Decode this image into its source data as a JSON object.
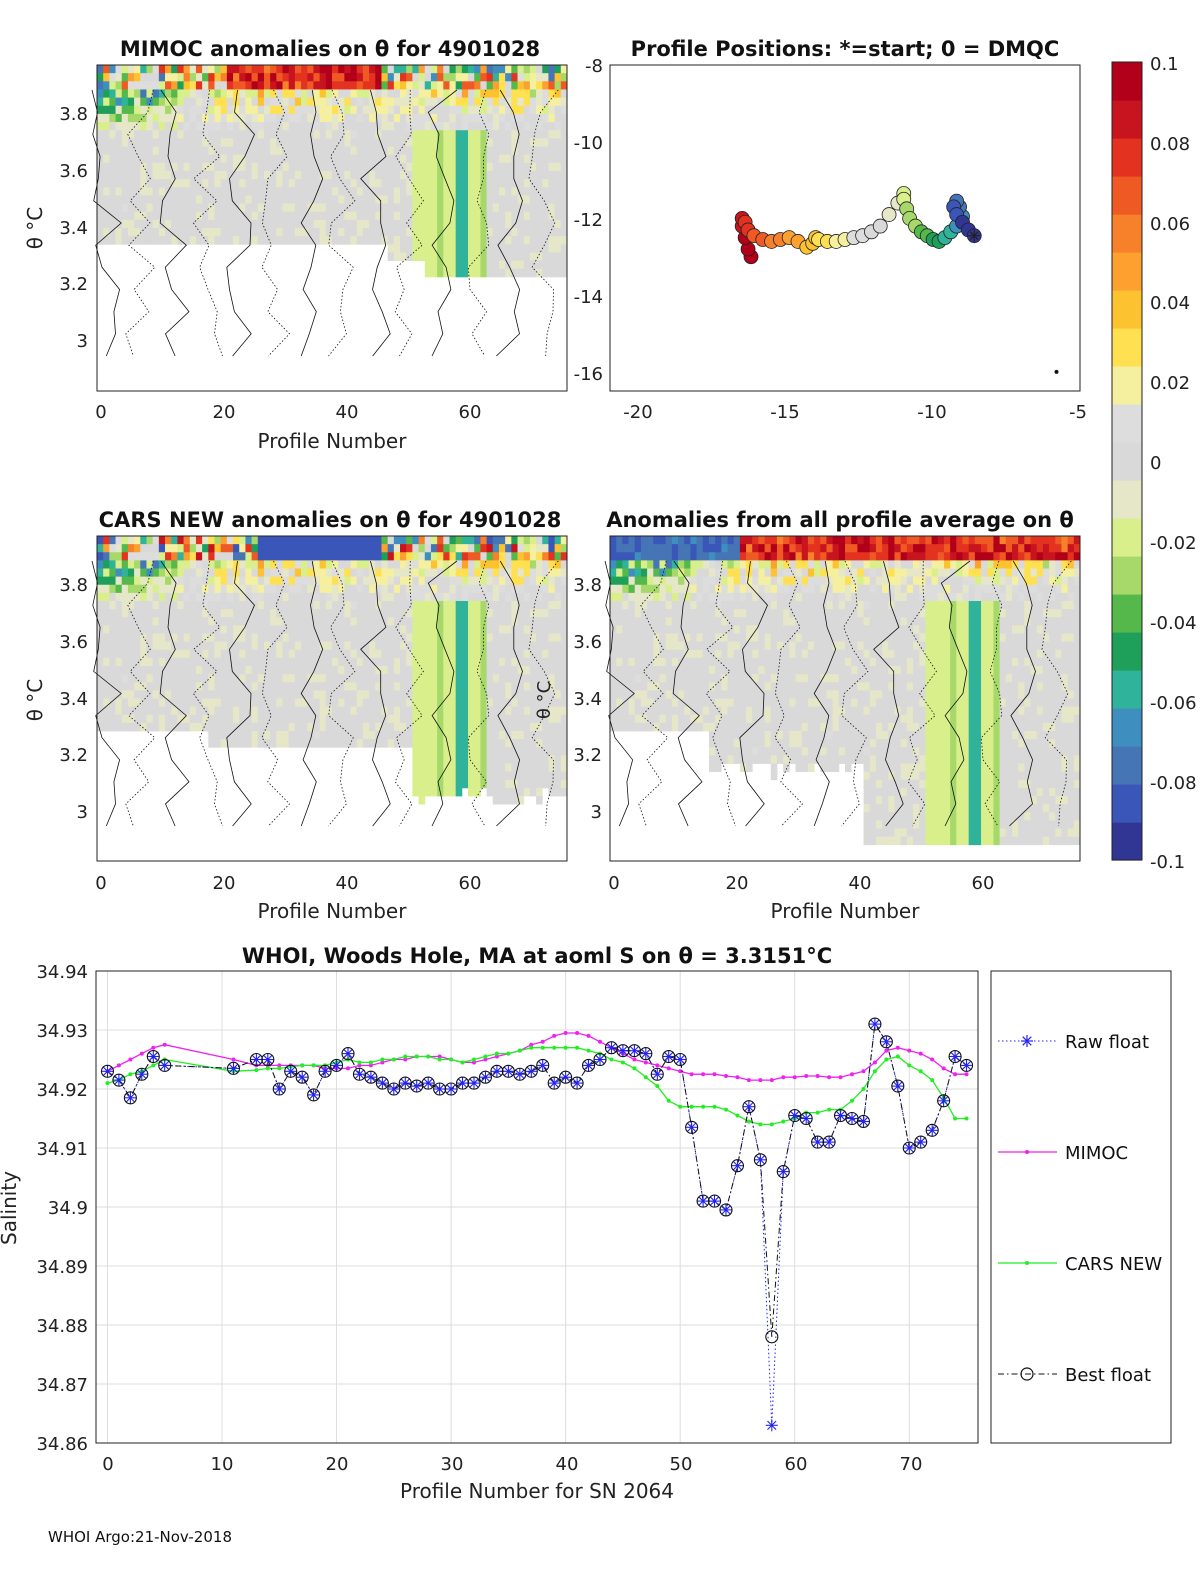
{
  "footer": "WHOI Argo:21-Nov-2018",
  "colorbar": {
    "ticks": [
      "0.1",
      "0.08",
      "0.06",
      "0.04",
      "0.02",
      "0",
      "-0.02",
      "-0.04",
      "-0.06",
      "-0.08",
      "-0.1"
    ],
    "colors": [
      "#313695",
      "#3a56b8",
      "#4575b4",
      "#3e8fc0",
      "#2fb39a",
      "#1fa05a",
      "#55b84a",
      "#a6d96a",
      "#d9ef8b",
      "#e6e6c8",
      "#d9d9d9",
      "#dddddd",
      "#f5f0a0",
      "#fee050",
      "#fdc230",
      "#fca030",
      "#f7802a",
      "#ef5a24",
      "#e33320",
      "#c8141e",
      "#b2001a"
    ]
  },
  "panels": {
    "mimoc": {
      "title": "MIMOC anomalies on θ  for 4901028",
      "xlabel": "Profile Number",
      "ylabel": "θ °C",
      "xticks": [
        "0",
        "20",
        "40",
        "60"
      ],
      "yticks": [
        "3.8",
        "3.6",
        "3.4",
        "3.2",
        "3"
      ]
    },
    "positions": {
      "title": "Profile Positions: *=start; 0 = DMQC",
      "xticks": [
        "-20",
        "-15",
        "-10",
        "-5"
      ],
      "yticks": [
        "-8",
        "-10",
        "-12",
        "-14",
        "-16"
      ]
    },
    "cars": {
      "title": "CARS NEW anomalies on θ for 4901028",
      "xlabel": "Profile Number",
      "ylabel": "θ °C",
      "inner_label": "θ °C",
      "xticks": [
        "0",
        "20",
        "40",
        "60"
      ],
      "yticks": [
        "3.8",
        "3.6",
        "3.4",
        "3.2",
        "3"
      ]
    },
    "allavg": {
      "title": "Anomalies from all profile average on θ",
      "xlabel": "Profile Number",
      "xticks": [
        "0",
        "20",
        "40",
        "60"
      ],
      "yticks": [
        "3.8",
        "3.6",
        "3.4",
        "3.2",
        "3"
      ]
    }
  },
  "chart_data": [
    {
      "type": "heatmap",
      "title": "MIMOC anomalies on θ  for 4901028",
      "xlabel": "Profile Number",
      "ylabel": "θ °C",
      "xlim": [
        -1,
        75
      ],
      "ylim": [
        2.8,
        3.95
      ],
      "color_range": [
        -0.1,
        0.1
      ]
    },
    {
      "type": "scatter",
      "title": "Profile Positions: *=start; 0 = DMQC",
      "xlim": [
        -21,
        -5
      ],
      "ylim": [
        -16.5,
        -8
      ],
      "lon": [
        -8.6,
        -8.8,
        -9.0,
        -9.2,
        -9.3,
        -9.2,
        -9.1,
        -9.0,
        -9.2,
        -9.4,
        -9.6,
        -9.8,
        -10.0,
        -10.2,
        -10.4,
        -10.6,
        -10.8,
        -10.9,
        -11.0,
        -11.0,
        -11.2,
        -11.5,
        -11.8,
        -12.1,
        -12.4,
        -12.7,
        -13.0,
        -13.3,
        -13.6,
        -13.9,
        -14.0,
        -14.1,
        -14.3,
        -14.6,
        -14.9,
        -15.2,
        -15.5,
        -15.8,
        -16.1,
        -16.3,
        -16.4,
        -16.5,
        -16.5,
        -16.4,
        -16.3,
        -16.2
      ],
      "lat": [
        -12.45,
        -12.3,
        -12.1,
        -11.9,
        -11.7,
        -11.55,
        -11.7,
        -11.95,
        -12.2,
        -12.35,
        -12.5,
        -12.6,
        -12.55,
        -12.45,
        -12.35,
        -12.2,
        -12.0,
        -11.75,
        -11.5,
        -11.35,
        -11.6,
        -11.9,
        -12.2,
        -12.35,
        -12.45,
        -12.5,
        -12.55,
        -12.6,
        -12.6,
        -12.55,
        -12.5,
        -12.65,
        -12.75,
        -12.6,
        -12.5,
        -12.55,
        -12.6,
        -12.55,
        -12.45,
        -12.3,
        -12.1,
        -12.0,
        -12.2,
        -12.5,
        -12.8,
        -13.0
      ],
      "dmqc_lon": [
        -5.8
      ],
      "dmqc_lat": [
        -16.0
      ]
    },
    {
      "type": "heatmap",
      "title": "CARS NEW anomalies on θ for 4901028",
      "xlabel": "Profile Number",
      "ylabel": "θ °C",
      "xlim": [
        -1,
        75
      ],
      "ylim": [
        2.8,
        3.95
      ],
      "color_range": [
        -0.1,
        0.1
      ]
    },
    {
      "type": "heatmap",
      "title": "Anomalies from all profile average on θ",
      "xlabel": "Profile Number",
      "xlim": [
        -1,
        75
      ],
      "ylim": [
        2.8,
        3.95
      ],
      "color_range": [
        -0.1,
        0.1
      ]
    },
    {
      "type": "line",
      "title": "WHOI, Woods Hole, MA at aoml S on θ = 3.3151°C",
      "xlabel": "Profile Number for SN 2064",
      "ylabel": "Salinity",
      "xlim": [
        -1,
        76
      ],
      "ylim": [
        34.86,
        34.94
      ],
      "xticks": [
        "0",
        "10",
        "20",
        "30",
        "40",
        "50",
        "60",
        "70"
      ],
      "yticks": [
        "34.94",
        "34.93",
        "34.92",
        "34.91",
        "34.9",
        "34.89",
        "34.88",
        "34.87",
        "34.86"
      ],
      "legend": [
        "Raw float",
        "MIMOC",
        "CARS NEW",
        "Best float"
      ],
      "x": [
        0,
        1,
        2,
        3,
        4,
        5,
        11,
        13,
        14,
        15,
        16,
        17,
        18,
        19,
        20,
        21,
        22,
        23,
        24,
        25,
        26,
        27,
        28,
        29,
        30,
        31,
        32,
        33,
        34,
        35,
        36,
        37,
        38,
        39,
        40,
        41,
        42,
        43,
        44,
        45,
        46,
        47,
        48,
        49,
        50,
        51,
        52,
        53,
        54,
        55,
        56,
        57,
        58,
        59,
        60,
        61,
        62,
        63,
        64,
        65,
        66,
        67,
        68,
        69,
        70,
        71,
        72,
        73,
        74,
        75
      ],
      "series": [
        {
          "name": "Raw float",
          "values": [
            34.923,
            34.9215,
            34.9185,
            34.9225,
            34.9255,
            34.924,
            34.9235,
            34.925,
            34.925,
            34.92,
            34.923,
            34.922,
            34.919,
            34.923,
            34.924,
            34.926,
            34.9225,
            34.922,
            34.921,
            34.92,
            34.921,
            34.9205,
            34.921,
            34.92,
            34.92,
            34.921,
            34.921,
            34.922,
            34.923,
            34.923,
            34.9225,
            34.923,
            34.924,
            34.921,
            34.922,
            34.921,
            34.924,
            34.925,
            34.927,
            34.9265,
            34.9265,
            34.926,
            34.9225,
            34.9255,
            34.925,
            34.9135,
            34.901,
            34.901,
            34.8995,
            34.907,
            34.917,
            34.908,
            34.863,
            34.906,
            34.9155,
            34.915,
            34.911,
            34.911,
            34.9155,
            34.915,
            34.9145,
            34.931,
            34.928,
            34.9205,
            34.91,
            34.911,
            34.913,
            34.918,
            34.9255,
            34.924
          ]
        },
        {
          "name": "MIMOC",
          "values": [
            34.923,
            34.924,
            34.925,
            34.926,
            34.927,
            34.9275,
            34.925,
            34.924,
            34.924,
            34.924,
            34.924,
            34.924,
            34.924,
            34.9235,
            34.9235,
            34.9235,
            34.924,
            34.924,
            34.9245,
            34.925,
            34.925,
            34.9255,
            34.9255,
            34.9255,
            34.925,
            34.9245,
            34.9245,
            34.925,
            34.9255,
            34.926,
            34.9265,
            34.9275,
            34.928,
            34.929,
            34.9295,
            34.9295,
            34.929,
            34.928,
            34.927,
            34.926,
            34.925,
            34.9245,
            34.924,
            34.9235,
            34.923,
            34.9225,
            34.9225,
            34.9225,
            34.9222,
            34.922,
            34.9215,
            34.9215,
            34.9215,
            34.922,
            34.922,
            34.9222,
            34.9222,
            34.922,
            34.922,
            34.9225,
            34.923,
            34.9245,
            34.9265,
            34.927,
            34.9265,
            34.926,
            34.925,
            34.9235,
            34.9225,
            34.9225
          ]
        },
        {
          "name": "CARS NEW",
          "values": [
            34.921,
            34.9215,
            34.9225,
            34.923,
            34.924,
            34.925,
            34.923,
            34.9232,
            34.9235,
            34.9235,
            34.9238,
            34.924,
            34.924,
            34.924,
            34.9245,
            34.925,
            34.9245,
            34.9245,
            34.925,
            34.925,
            34.9255,
            34.9255,
            34.9255,
            34.925,
            34.925,
            34.9245,
            34.925,
            34.9255,
            34.926,
            34.926,
            34.9265,
            34.927,
            34.927,
            34.927,
            34.927,
            34.927,
            34.9265,
            34.926,
            34.925,
            34.9245,
            34.9235,
            34.922,
            34.9205,
            34.918,
            34.917,
            34.917,
            34.917,
            34.917,
            34.9165,
            34.9155,
            34.9145,
            34.914,
            34.914,
            34.9145,
            34.915,
            34.916,
            34.916,
            34.9165,
            34.9165,
            34.918,
            34.92,
            34.923,
            34.925,
            34.9255,
            34.924,
            34.923,
            34.9215,
            34.9185,
            34.915,
            34.915
          ]
        },
        {
          "name": "Best float",
          "values": [
            34.923,
            34.9215,
            34.9185,
            34.9225,
            34.9255,
            34.924,
            34.9235,
            34.925,
            34.925,
            34.92,
            34.923,
            34.922,
            34.919,
            34.923,
            34.924,
            34.926,
            34.9225,
            34.922,
            34.921,
            34.92,
            34.921,
            34.9205,
            34.921,
            34.92,
            34.92,
            34.921,
            34.921,
            34.922,
            34.923,
            34.923,
            34.9225,
            34.923,
            34.924,
            34.921,
            34.922,
            34.921,
            34.924,
            34.925,
            34.927,
            34.9265,
            34.9265,
            34.926,
            34.9225,
            34.9255,
            34.925,
            34.9135,
            34.901,
            34.901,
            34.8995,
            34.907,
            34.917,
            34.908,
            34.878,
            34.906,
            34.9155,
            34.915,
            34.911,
            34.911,
            34.9155,
            34.915,
            34.9145,
            34.931,
            34.928,
            34.9205,
            34.91,
            34.911,
            34.913,
            34.918,
            34.9255,
            34.924
          ]
        }
      ],
      "colors": {
        "raw": "#2323ee",
        "mimoc": "#ee22ee",
        "cars": "#22ee22",
        "best": "#111111"
      }
    }
  ]
}
